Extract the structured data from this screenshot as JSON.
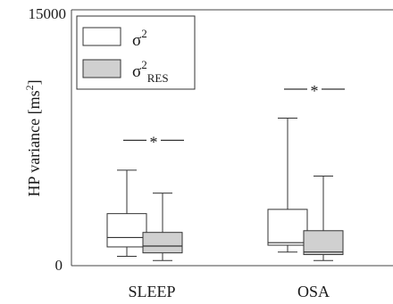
{
  "chart_data": {
    "type": "boxplot",
    "ylabel_main": "HP variance [ms",
    "ylabel_sup": "2",
    "ylabel_close": "]",
    "ylim": [
      0,
      15000
    ],
    "y_ticks": [
      {
        "value": 0,
        "label": "0"
      },
      {
        "value": 15000,
        "label": "15000"
      }
    ],
    "categories": [
      "SLEEP",
      "OSA"
    ],
    "legend": {
      "position": "top-left",
      "entries": [
        {
          "key": "sigma2",
          "base": "σ",
          "sup": "2",
          "sub": "",
          "fill": "#ffffff"
        },
        {
          "key": "sigma2_res",
          "base": "σ",
          "sup": "2",
          "sub": "RES",
          "fill": "#d0d0d0"
        }
      ]
    },
    "series": [
      {
        "key": "sigma2",
        "fill": "#ffffff",
        "boxes": [
          {
            "category": "SLEEP",
            "min": 550,
            "q1": 1100,
            "median": 1650,
            "q3": 3050,
            "max": 5600
          },
          {
            "category": "OSA",
            "min": 800,
            "q1": 1200,
            "median": 1350,
            "q3": 3300,
            "max": 8650
          }
        ]
      },
      {
        "key": "sigma2_res",
        "fill": "#d0d0d0",
        "boxes": [
          {
            "category": "SLEEP",
            "min": 300,
            "q1": 750,
            "median": 1150,
            "q3": 1950,
            "max": 4250
          },
          {
            "category": "OSA",
            "min": 300,
            "q1": 650,
            "median": 800,
            "q3": 2050,
            "max": 5250
          }
        ]
      }
    ],
    "significance": [
      {
        "category": "SLEEP",
        "y": 7350,
        "label": "*"
      },
      {
        "category": "OSA",
        "y": 10350,
        "label": "*"
      }
    ],
    "grid": false
  }
}
